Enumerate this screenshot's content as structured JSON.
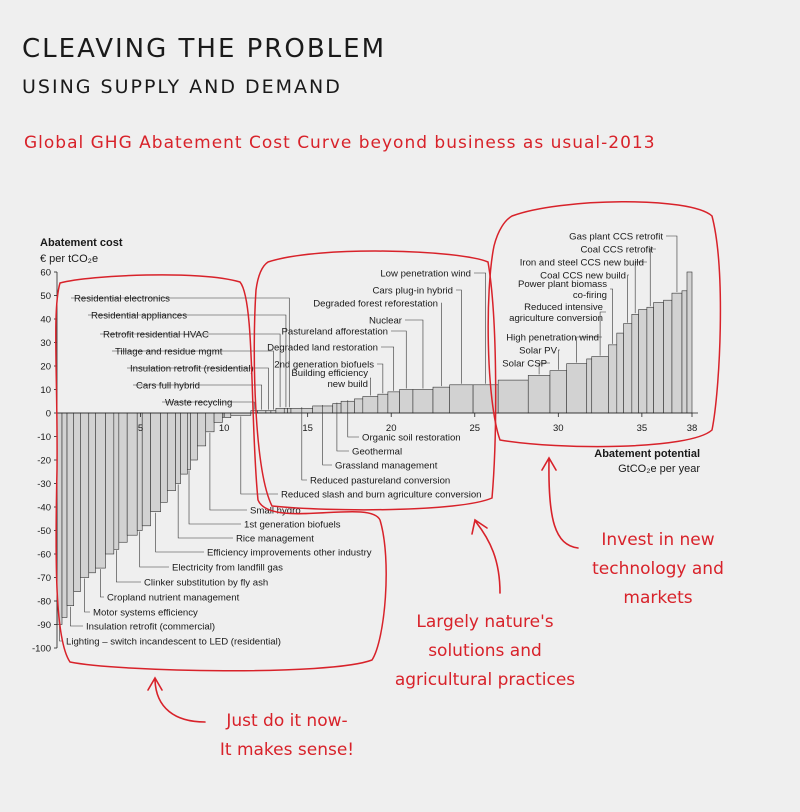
{
  "header": {
    "title": "CLEAVING THE PROBLEM",
    "subtitle": "USING SUPPLY AND DEMAND",
    "chart_caption": "Global GHG Abatement Cost Curve beyond business as usual-2013"
  },
  "notes": {
    "left": [
      "Just do it now-",
      "It makes sense!"
    ],
    "middle": [
      "Largely nature's",
      "solutions and",
      "agricultural practices"
    ],
    "right": [
      "Invest in new",
      "technology and",
      "markets"
    ]
  },
  "colors": {
    "accent": "#d8222a",
    "bar_fill": "#d2d2d2",
    "bar_stroke": "#333333",
    "text": "#1a1a1a"
  },
  "chart_data": {
    "type": "bar",
    "variant": "marginal-abatement-cost-curve",
    "ylabel": "Abatement cost",
    "ylabel_unit": "€ per tCO₂e",
    "xlabel": "Abatement potential",
    "xlabel_unit": "GtCO₂e per year",
    "xlim": [
      0,
      38
    ],
    "ylim": [
      -100,
      60
    ],
    "yticks": [
      60,
      50,
      40,
      30,
      20,
      10,
      0,
      -10,
      -20,
      -30,
      -40,
      -50,
      -60,
      -70,
      -80,
      -90,
      -100
    ],
    "xticks": [
      5,
      10,
      15,
      20,
      25,
      30,
      35,
      38
    ],
    "levers": [
      {
        "name": "Lighting – switch incandescent to LED (residential)",
        "x": 0.0,
        "width": 0.3,
        "cost": -90
      },
      {
        "name": "",
        "x": 0.3,
        "width": 0.3,
        "cost": -87
      },
      {
        "name": "Insulation retrofit (commercial)",
        "x": 0.6,
        "width": 0.4,
        "cost": -82
      },
      {
        "name": "",
        "x": 1.0,
        "width": 0.4,
        "cost": -76
      },
      {
        "name": "Motor systems efficiency",
        "x": 1.4,
        "width": 0.5,
        "cost": -70
      },
      {
        "name": "",
        "x": 1.9,
        "width": 0.4,
        "cost": -68
      },
      {
        "name": "Cropland nutrient management",
        "x": 2.3,
        "width": 0.6,
        "cost": -66
      },
      {
        "name": "",
        "x": 2.9,
        "width": 0.5,
        "cost": -60
      },
      {
        "name": "Clinker substitution by fly ash",
        "x": 3.4,
        "width": 0.3,
        "cost": -58
      },
      {
        "name": "",
        "x": 3.7,
        "width": 0.5,
        "cost": -55
      },
      {
        "name": "",
        "x": 4.2,
        "width": 0.6,
        "cost": -52
      },
      {
        "name": "Electricity from landfill gas",
        "x": 4.8,
        "width": 0.3,
        "cost": -50
      },
      {
        "name": "",
        "x": 5.1,
        "width": 0.5,
        "cost": -48
      },
      {
        "name": "Efficiency improvements other industry",
        "x": 5.6,
        "width": 0.6,
        "cost": -42
      },
      {
        "name": "",
        "x": 6.2,
        "width": 0.4,
        "cost": -38
      },
      {
        "name": "",
        "x": 6.6,
        "width": 0.5,
        "cost": -33
      },
      {
        "name": "Rice management",
        "x": 7.1,
        "width": 0.3,
        "cost": -30
      },
      {
        "name": "",
        "x": 7.4,
        "width": 0.4,
        "cost": -26
      },
      {
        "name": "1st generation biofuels",
        "x": 7.8,
        "width": 0.2,
        "cost": -24
      },
      {
        "name": "",
        "x": 8.0,
        "width": 0.4,
        "cost": -20
      },
      {
        "name": "",
        "x": 8.4,
        "width": 0.5,
        "cost": -14
      },
      {
        "name": "Small hydro",
        "x": 8.9,
        "width": 0.5,
        "cost": -8
      },
      {
        "name": "",
        "x": 9.4,
        "width": 0.5,
        "cost": -4
      },
      {
        "name": "",
        "x": 9.9,
        "width": 0.5,
        "cost": -2
      },
      {
        "name": "Reduced slash and burn agriculture conversion",
        "x": 10.4,
        "width": 1.2,
        "cost": -1
      },
      {
        "name": "Waste recycling",
        "x": 11.6,
        "width": 0.4,
        "cost": 1
      },
      {
        "name": "Cars full hybrid",
        "x": 12.0,
        "width": 0.5,
        "cost": 1
      },
      {
        "name": "Insulation retrofit (residential)",
        "x": 12.5,
        "width": 0.3,
        "cost": 1
      },
      {
        "name": "Tillage and residue mgmt",
        "x": 12.8,
        "width": 0.3,
        "cost": 1
      },
      {
        "name": "Retrofit residential HVAC",
        "x": 13.1,
        "width": 0.5,
        "cost": 2
      },
      {
        "name": "Residential appliances",
        "x": 13.6,
        "width": 0.2,
        "cost": 2
      },
      {
        "name": "Residential electronics",
        "x": 13.8,
        "width": 0.2,
        "cost": 2
      },
      {
        "name": "Reduced pastureland conversion",
        "x": 14.0,
        "width": 1.3,
        "cost": 2
      },
      {
        "name": "Grassland management",
        "x": 15.3,
        "width": 1.2,
        "cost": 3
      },
      {
        "name": "Geothermal",
        "x": 16.5,
        "width": 0.5,
        "cost": 4
      },
      {
        "name": "Organic soil restoration",
        "x": 17.0,
        "width": 0.8,
        "cost": 5
      },
      {
        "name": "",
        "x": 17.8,
        "width": 0.5,
        "cost": 6
      },
      {
        "name": "Building efficiency new build",
        "x": 18.3,
        "width": 0.9,
        "cost": 7
      },
      {
        "name": "2nd generation biofuels",
        "x": 19.2,
        "width": 0.6,
        "cost": 8
      },
      {
        "name": "Degraded land restoration",
        "x": 19.8,
        "width": 0.7,
        "cost": 9
      },
      {
        "name": "Pastureland afforestation",
        "x": 20.5,
        "width": 0.8,
        "cost": 10
      },
      {
        "name": "Nuclear",
        "x": 21.3,
        "width": 1.2,
        "cost": 10
      },
      {
        "name": "Degraded forest reforestation",
        "x": 22.5,
        "width": 1.0,
        "cost": 11
      },
      {
        "name": "Cars plug-in hybrid",
        "x": 23.5,
        "width": 1.4,
        "cost": 12
      },
      {
        "name": "Low penetration wind",
        "x": 24.9,
        "width": 1.5,
        "cost": 12
      },
      {
        "name": "",
        "x": 26.4,
        "width": 1.8,
        "cost": 14
      },
      {
        "name": "Solar CSP",
        "x": 28.2,
        "width": 1.3,
        "cost": 16
      },
      {
        "name": "Solar PV",
        "x": 29.5,
        "width": 1.0,
        "cost": 18
      },
      {
        "name": "High penetration wind",
        "x": 30.5,
        "width": 1.2,
        "cost": 21
      },
      {
        "name": "",
        "x": 31.7,
        "width": 0.3,
        "cost": 23
      },
      {
        "name": "Reduced intensive agriculture conversion",
        "x": 32.0,
        "width": 1.0,
        "cost": 24
      },
      {
        "name": "Power plant biomass co-firing",
        "x": 33.0,
        "width": 0.5,
        "cost": 29
      },
      {
        "name": "",
        "x": 33.5,
        "width": 0.4,
        "cost": 34
      },
      {
        "name": "Coal CCS new build",
        "x": 33.9,
        "width": 0.5,
        "cost": 38
      },
      {
        "name": "Iron and steel CCS new build",
        "x": 34.4,
        "width": 0.4,
        "cost": 42
      },
      {
        "name": "",
        "x": 34.8,
        "width": 0.5,
        "cost": 44
      },
      {
        "name": "Coal CCS retrofit",
        "x": 35.3,
        "width": 0.4,
        "cost": 45
      },
      {
        "name": "",
        "x": 35.7,
        "width": 0.6,
        "cost": 47
      },
      {
        "name": "",
        "x": 36.3,
        "width": 0.5,
        "cost": 48
      },
      {
        "name": "Gas plant CCS retrofit",
        "x": 36.8,
        "width": 0.6,
        "cost": 51
      },
      {
        "name": "",
        "x": 37.4,
        "width": 0.3,
        "cost": 52
      },
      {
        "name": "",
        "x": 37.7,
        "width": 0.3,
        "cost": 60
      }
    ]
  }
}
